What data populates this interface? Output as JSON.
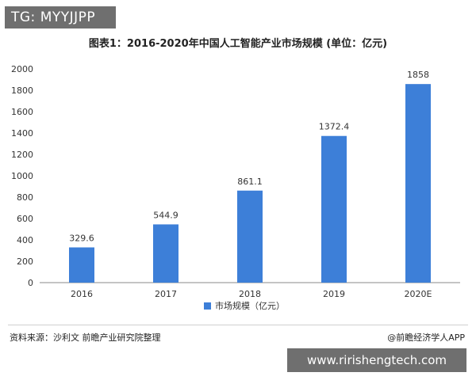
{
  "badge": {
    "text": "TG: MYYJJPP"
  },
  "footer": {
    "source": "资料来源：沙利文 前瞻产业研究院整理",
    "credit": "@前瞻经济学人APP"
  },
  "banner": {
    "url": "www.ririshengtech.com"
  },
  "chart_data": {
    "type": "bar",
    "title": "图表1：2016-2020年中国人工智能产业市场规模 (单位：亿元)",
    "categories": [
      "2016",
      "2017",
      "2018",
      "2019",
      "2020E"
    ],
    "series": [
      {
        "name": "市场规模（亿元）",
        "values": [
          329.6,
          544.9,
          861.1,
          1372.4,
          1858
        ]
      }
    ],
    "data_labels": [
      "329.6",
      "544.9",
      "861.1",
      "1372.4",
      "1858"
    ],
    "ylim": [
      0,
      2000
    ],
    "yticks": [
      0,
      200,
      400,
      600,
      800,
      1000,
      1200,
      1400,
      1600,
      1800,
      2000
    ],
    "grid": false,
    "legend_position": "bottom-center",
    "colors": {
      "bar": "#3d7fd8",
      "axis": "#888888",
      "text": "#333333"
    }
  }
}
